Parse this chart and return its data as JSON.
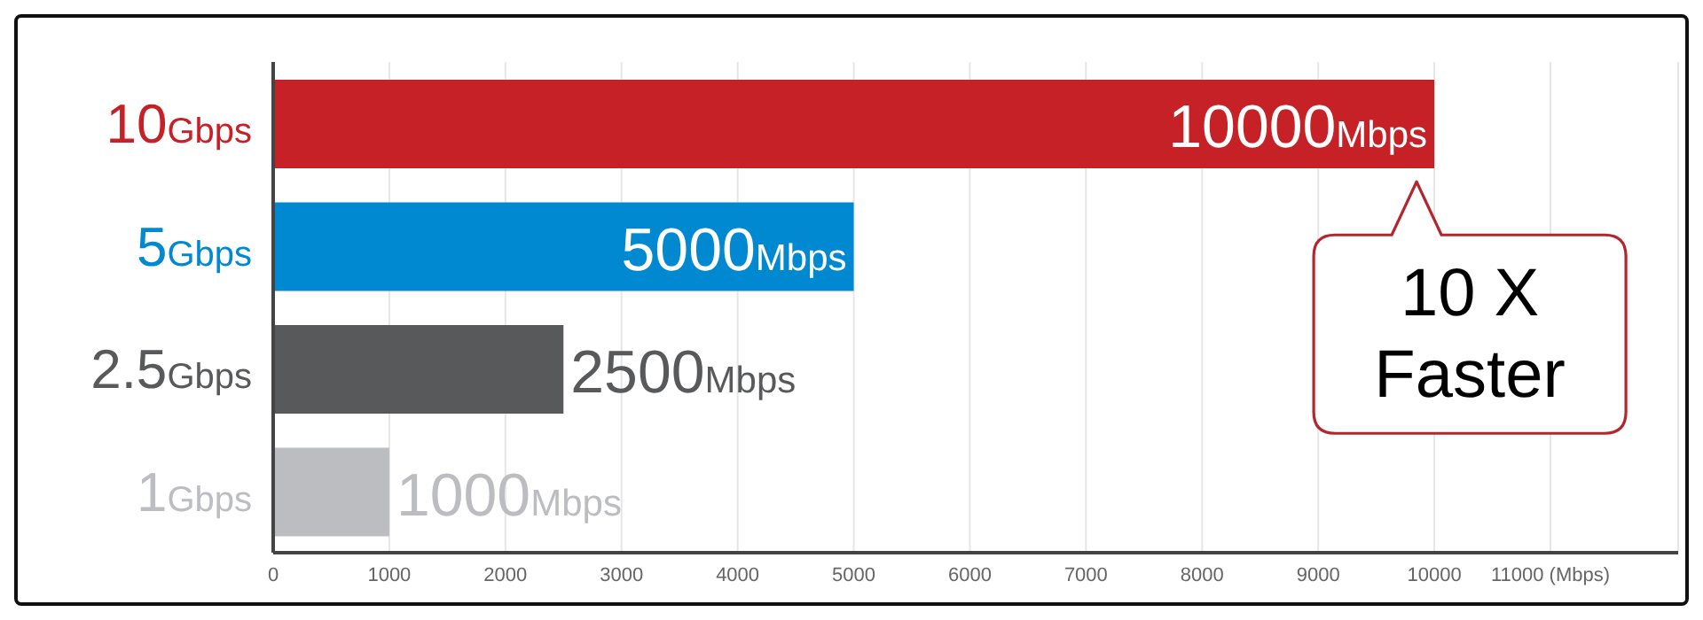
{
  "chart_data": {
    "type": "bar",
    "orientation": "horizontal",
    "categories": [
      "10Gbps",
      "5Gbps",
      "2.5Gbps",
      "1Gbps"
    ],
    "values": [
      10000,
      5000,
      2500,
      1000
    ],
    "colors": [
      "#c62127",
      "#0089d0",
      "#58595b",
      "#bcbdc0"
    ],
    "value_labels": [
      "10000Mbps",
      "5000Mbps",
      "2500Mbps",
      "1000Mbps"
    ],
    "xlim": [
      0,
      12100
    ],
    "xticks": [
      0,
      1000,
      2000,
      3000,
      4000,
      5000,
      6000,
      7000,
      8000,
      9000,
      10000,
      {
        "value": 11000,
        "label": "11000 (Mbps)"
      }
    ],
    "grid": "x",
    "annotations": [
      {
        "text": "10 X Faster",
        "x": 10000,
        "y": "10Gbps"
      }
    ]
  }
}
